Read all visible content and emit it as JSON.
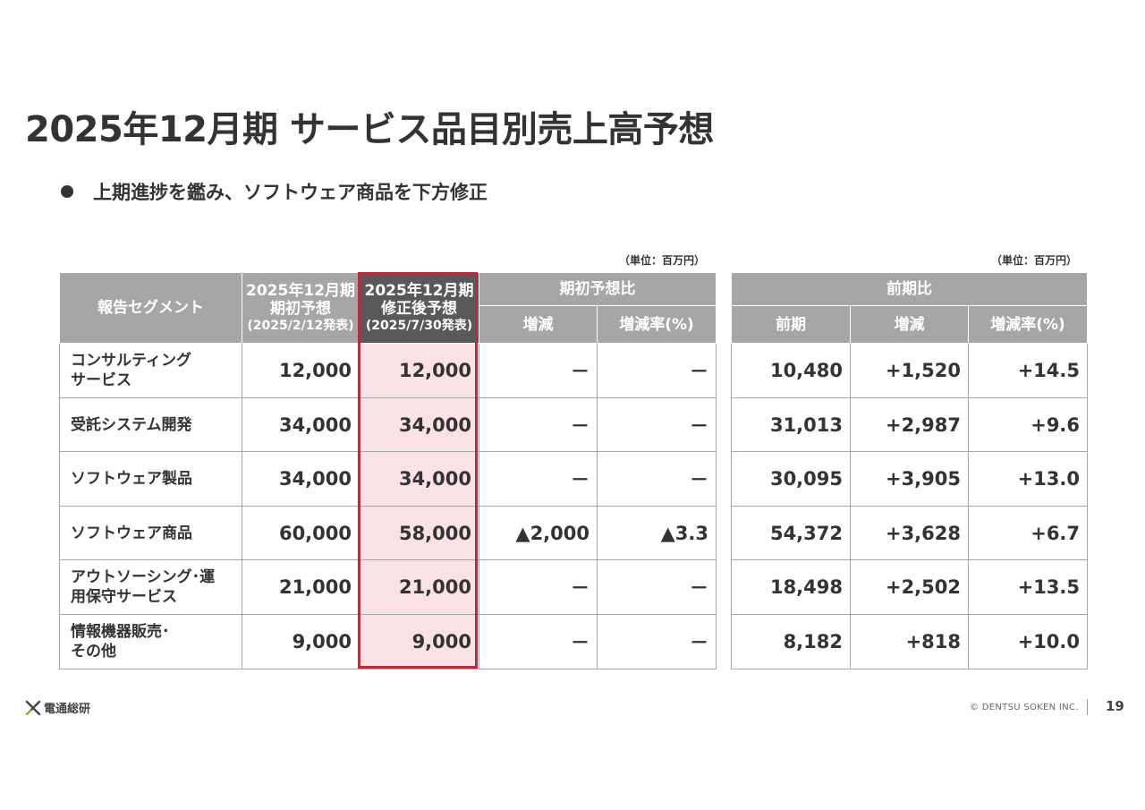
{
  "title": "2025年12月期 サービス品目別売上高予想",
  "bullet": "上期進捗を鑑み、ソフトウェア商品を下方修正",
  "unit_label": "（単位：百万円）",
  "left_table": {
    "head": {
      "segment": "報告セグメント",
      "initial": [
        "2025年12月期",
        "期初予想",
        "(2025/2/12発表)"
      ],
      "revised": [
        "2025年12月期",
        "修正後予想",
        "(2025/7/30発表)"
      ],
      "group": "期初予想比",
      "change": "増減",
      "rate": "増減率(%)"
    },
    "rows": [
      {
        "segment": [
          "コンサルティング",
          "サービス"
        ],
        "initial": "12,000",
        "revised": "12,000",
        "change": "－",
        "rate": "－"
      },
      {
        "segment": [
          "受託システム開発"
        ],
        "initial": "34,000",
        "revised": "34,000",
        "change": "－",
        "rate": "－"
      },
      {
        "segment": [
          "ソフトウェア製品"
        ],
        "initial": "34,000",
        "revised": "34,000",
        "change": "－",
        "rate": "－"
      },
      {
        "segment": [
          "ソフトウェア商品"
        ],
        "initial": "60,000",
        "revised": "58,000",
        "change": "▲2,000",
        "rate": "▲3.3"
      },
      {
        "segment": [
          "アウトソーシング･運",
          "用保守サービス"
        ],
        "initial": "21,000",
        "revised": "21,000",
        "change": "－",
        "rate": "－"
      },
      {
        "segment": [
          "情報機器販売･",
          "その他"
        ],
        "initial": "9,000",
        "revised": "9,000",
        "change": "－",
        "rate": "－"
      }
    ]
  },
  "right_table": {
    "head": {
      "group": "前期比",
      "prior": "前期",
      "change": "増減",
      "rate": "増減率(%)"
    },
    "rows": [
      {
        "prior": "10,480",
        "change": "+1,520",
        "rate": "+14.5"
      },
      {
        "prior": "31,013",
        "change": "+2,987",
        "rate": "+9.6"
      },
      {
        "prior": "30,095",
        "change": "+3,905",
        "rate": "+13.0"
      },
      {
        "prior": "54,372",
        "change": "+3,628",
        "rate": "+6.7"
      },
      {
        "prior": "18,498",
        "change": "+2,502",
        "rate": "+13.5"
      },
      {
        "prior": "8,182",
        "change": "+818",
        "rate": "+10.0"
      }
    ]
  },
  "footer": {
    "logo_text": "電通総研",
    "copyright": "© DENTSU SOKEN INC.",
    "page_number": "19"
  },
  "colors": {
    "header_gray": "#a6a6a6",
    "highlight_header": "#595959",
    "highlight_fill": "#f9e1e6",
    "highlight_border": "#b03040",
    "logo_green": "#7ab648"
  }
}
